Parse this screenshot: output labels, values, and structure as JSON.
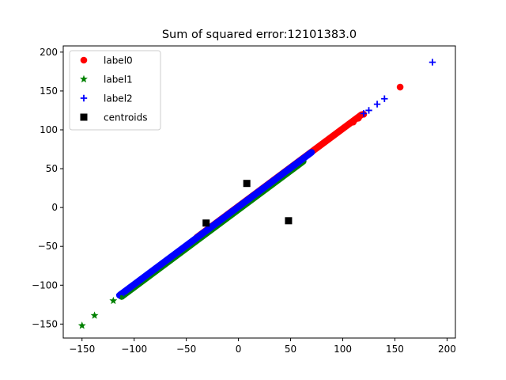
{
  "chart_data": {
    "type": "scatter",
    "title": "Sum of squared error:12101383.0",
    "xlabel": "",
    "ylabel": "",
    "xlim": [
      -168,
      208
    ],
    "ylim": [
      -168,
      208
    ],
    "xticks": [
      -150,
      -100,
      -50,
      0,
      50,
      100,
      150,
      200
    ],
    "yticks": [
      -150,
      -100,
      -50,
      0,
      50,
      100,
      150,
      200
    ],
    "xtick_labels": [
      "−150",
      "−100",
      "−50",
      "0",
      "50",
      "100",
      "150",
      "200"
    ],
    "ytick_labels": [
      "−150",
      "−100",
      "−50",
      "0",
      "50",
      "100",
      "150",
      "200"
    ],
    "grid": false,
    "legend_position": "upper-left",
    "series": [
      {
        "name": "label0",
        "marker": "circle",
        "color": "#ff0000",
        "band": {
          "x_from": -40,
          "x_to": 118,
          "y_offset": 1.5
        },
        "points": [
          {
            "x": 155,
            "y": 155
          },
          {
            "x": 120,
            "y": 120
          },
          {
            "x": 115,
            "y": 115
          },
          {
            "x": 110,
            "y": 110
          }
        ]
      },
      {
        "name": "label1",
        "marker": "star",
        "color": "#008000",
        "band": {
          "x_from": -112,
          "x_to": 62,
          "y_offset": -2.5
        },
        "points": [
          {
            "x": -150,
            "y": -152
          },
          {
            "x": -138,
            "y": -139
          },
          {
            "x": -120,
            "y": -120
          },
          {
            "x": -112,
            "y": -114
          }
        ]
      },
      {
        "name": "label2",
        "marker": "plus",
        "color": "#0000ff",
        "band": {
          "x_from": -114,
          "x_to": 70,
          "y_offset": 1
        },
        "points": [
          {
            "x": 186,
            "y": 187
          },
          {
            "x": 140,
            "y": 140
          },
          {
            "x": 133,
            "y": 133
          },
          {
            "x": 125,
            "y": 125
          },
          {
            "x": 120,
            "y": 121
          },
          {
            "x": -114,
            "y": -112
          },
          {
            "x": -110,
            "y": -110
          }
        ]
      },
      {
        "name": "centroids",
        "marker": "square",
        "color": "#000000",
        "points": [
          {
            "x": 8,
            "y": 31
          },
          {
            "x": -31,
            "y": -20
          },
          {
            "x": 48,
            "y": -17
          }
        ]
      }
    ]
  }
}
